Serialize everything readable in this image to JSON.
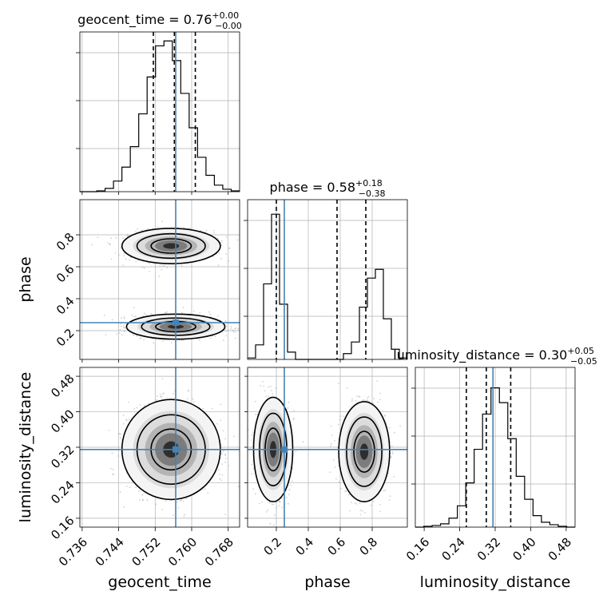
{
  "chart_data": {
    "type": "corner",
    "parameters": [
      "geocent_time",
      "phase",
      "luminosity_distance"
    ],
    "truths": [
      0.7565,
      0.25,
      0.315
    ],
    "colors": {
      "truth": "#4682b4",
      "hist": "#000000",
      "grid": "#b0b0b0"
    },
    "titles": [
      {
        "name": "geocent_time",
        "value": "0.76",
        "plus": "+0.00",
        "minus": "−0.00"
      },
      {
        "name": "phase",
        "value": "0.58",
        "plus": "+0.18",
        "minus": "−0.38"
      },
      {
        "name": "luminosity_distance",
        "value": "0.30",
        "plus": "+0.05",
        "minus": "−0.05"
      }
    ],
    "ranges": [
      [
        0.7355,
        0.7705
      ],
      [
        0.02,
        1.02
      ],
      [
        0.14,
        0.5
      ]
    ],
    "ticks": [
      [
        "0.736",
        "0.744",
        "0.752",
        "0.760",
        "0.768"
      ],
      [
        "0.2",
        "0.4",
        "0.6",
        "0.8"
      ],
      [
        "0.16",
        "0.24",
        "0.32",
        "0.40",
        "0.48"
      ]
    ],
    "quantiles": [
      [
        0.7516,
        0.7562,
        0.7608
      ],
      [
        0.2,
        0.58,
        0.76
      ],
      [
        0.255,
        0.3,
        0.355
      ]
    ],
    "histograms": [
      {
        "edges_range": [
          0.7355,
          0.7705
        ],
        "counts": [
          0,
          0,
          1,
          4,
          13,
          30,
          55,
          95,
          140,
          178,
          184,
          160,
          120,
          78,
          42,
          20,
          8,
          3,
          1
        ]
      },
      {
        "edges_range": [
          0.02,
          1.02
        ],
        "counts": [
          1,
          10,
          52,
          100,
          38,
          5,
          0,
          0,
          0,
          0,
          0,
          0,
          4,
          12,
          36,
          56,
          62,
          28,
          7,
          1
        ]
      },
      {
        "edges_range": [
          0.14,
          0.5
        ],
        "counts": [
          0,
          1,
          2,
          4,
          11,
          26,
          54,
          95,
          138,
          170,
          152,
          108,
          62,
          34,
          14,
          6,
          3,
          1,
          0
        ]
      }
    ],
    "ymax": [
      195,
      110,
      195
    ],
    "pairs": [
      {
        "x": "geocent_time",
        "y": "phase",
        "modes": [
          {
            "center": [
              0.7555,
              0.73
            ],
            "sigma": [
              0.0044,
              0.045
            ]
          },
          {
            "center": [
              0.7565,
              0.225
            ],
            "sigma": [
              0.0044,
              0.032
            ]
          }
        ]
      },
      {
        "x": "geocent_time",
        "y": "luminosity_distance",
        "modes": [
          {
            "center": [
              0.7555,
              0.315
            ],
            "sigma": [
              0.0044,
              0.046
            ]
          }
        ]
      },
      {
        "x": "phase",
        "y": "luminosity_distance",
        "modes": [
          {
            "center": [
              0.18,
              0.315
            ],
            "sigma": [
              0.05,
              0.048
            ]
          },
          {
            "center": [
              0.75,
              0.31
            ],
            "sigma": [
              0.065,
              0.046
            ]
          }
        ]
      }
    ],
    "xlabels": [
      "geocent_time",
      "phase",
      "luminosity_distance"
    ],
    "ylabels": [
      "",
      "phase",
      "luminosity_distance"
    ],
    "grid": true
  }
}
